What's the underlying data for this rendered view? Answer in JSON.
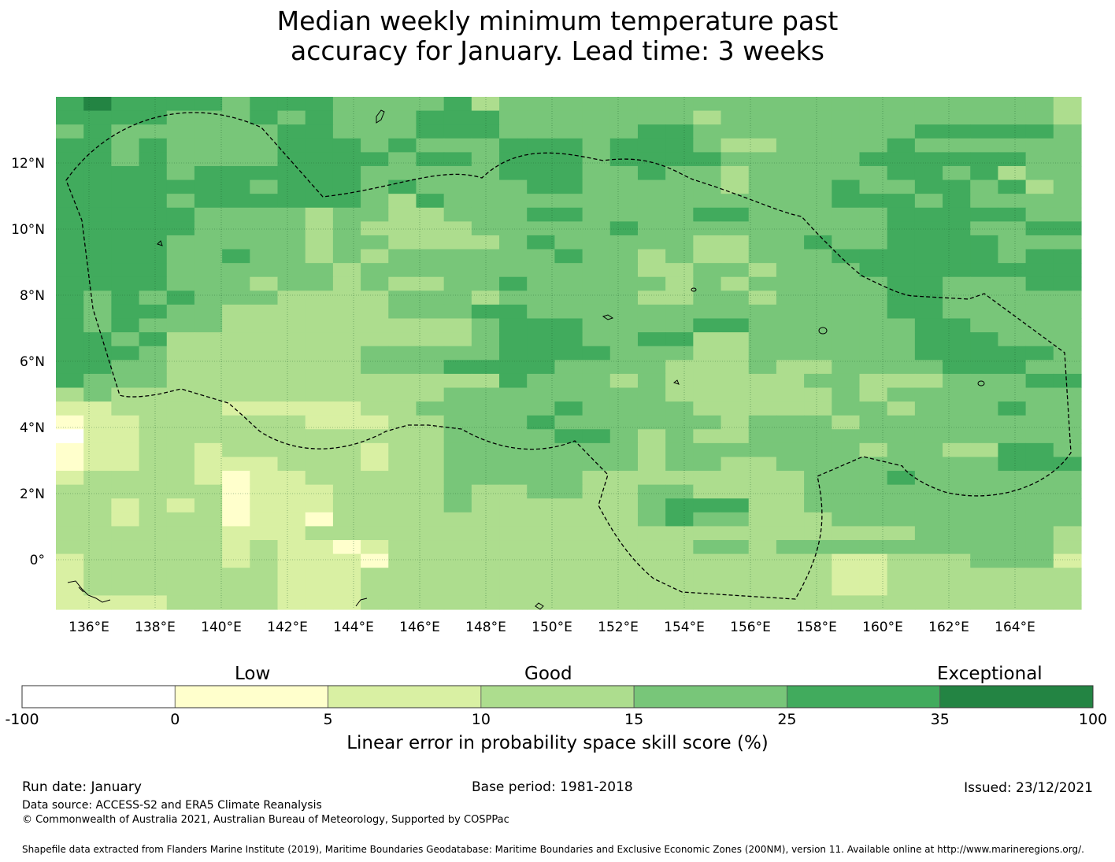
{
  "title": {
    "line1": "Median weekly minimum temperature past",
    "line2": "accuracy for January. Lead time: 3 weeks"
  },
  "map": {
    "lon_range": [
      135,
      166
    ],
    "lat_range": [
      -1.5,
      14
    ],
    "lon_ticks": [
      "136°E",
      "138°E",
      "140°E",
      "142°E",
      "144°E",
      "146°E",
      "148°E",
      "150°E",
      "152°E",
      "154°E",
      "156°E",
      "158°E",
      "160°E",
      "162°E",
      "164°E"
    ],
    "lat_ticks": [
      "12°N",
      "10°N",
      "8°N",
      "6°N",
      "4°N",
      "2°N",
      "0°"
    ],
    "grid": "dotted-graticule",
    "boundary": "EEZ dashed outline",
    "rows_north_to_south": [
      "5655554555444453444444444444444444443",
      "5555444545444555444444434444444444443",
      "4544444455444555444445544444444555554",
      "5545444455545444555455543344445444444",
      "5545444455554554555455554444455555544",
      "5555455555544444555445443444445545344",
      "5555555455545444455444443444544554534",
      "5555455555543544444444444444555454444",
      "5555544443443344455444455444445555544",
      "5555544443433334444454444444445554455",
      "5555444443443333454444433445445555444",
      "5555445443434444445443433444555555455",
      "5555444444344444444443344344455555555",
      "5555444344343344544444343444445544455",
      "5454544433334443444443344344445544444",
      "5455443333334445544444444444445544444",
      "5454443333333334555444455444444554444",
      "5545333333333334555445533444444555444",
      "5554333333344444555544433444444555554",
      "5544333333344455554444333433444455544",
      "5444333333333333544434333334433344455",
      "3433333333333344444444333333434444444",
      "2233332222233444445444433333443444544",
      "1223333332223344454444443444344444444",
      "0223333333333344445543433444444444444",
      "1223323333323344444443444444434433554",
      "1223322233323344444443443344444444555",
      "2333321223333344444333333334445444444",
      "3333331222333343344334433334444444444",
      "3323231222333343333334555334444444444",
      "3323331221333333333334544333444444444",
      "3333332223333333333333333333333444443",
      "3333332322123333333333344344444444443",
      "2333332322213333333333333333223334442",
      "2333333322233333333333333333223333333",
      "2333333322233333333333333333223333333",
      "2222333322233333333333333333333333333"
    ]
  },
  "colorbar": {
    "category_labels": [
      "Low",
      "Good",
      "Exceptional"
    ],
    "ticks": [
      "-100",
      "0",
      "5",
      "10",
      "15",
      "25",
      "35",
      "100"
    ],
    "colors": [
      "#ffffff",
      "#ffffcc",
      "#d9f0a3",
      "#addd8e",
      "#78c679",
      "#41ab5d",
      "#238443"
    ],
    "axis_label": "Linear error in probability space skill score (%)"
  },
  "footer": {
    "run_date": "Run date: January",
    "base_period": "Base period: 1981-2018",
    "issued": "Issued: 23/12/2021",
    "data_source": "Data source: ACCESS-S2 and ERA5 Climate Reanalysis",
    "copyright": "© Commonwealth of Australia 2021, Australian Bureau of Meteorology, Supported by COSPPac",
    "shapefile": "Shapefile data extracted from Flanders Marine Institute (2019), Maritime Boundaries Geodatabase: Maritime Boundaries and Exclusive Economic Zones (200NM), version 11. Available online at http://www.marineregions.org/."
  }
}
